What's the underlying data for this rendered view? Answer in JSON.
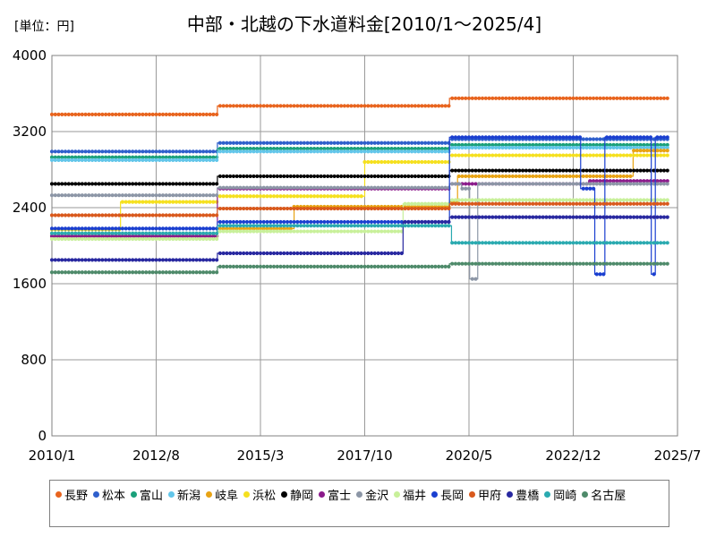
{
  "chart_data": {
    "type": "line",
    "title": "中部・北越の下水道料金[2010/1～2025/4]",
    "unit_label": "[単位：円]",
    "xlabel": "",
    "ylabel": "",
    "xlim": [
      2010.0,
      2025.5
    ],
    "ylim": [
      0,
      4000
    ],
    "y_ticks": [
      0,
      800,
      1600,
      2400,
      3200,
      4000
    ],
    "x_ticks": [
      {
        "t": 2010.0,
        "label": "2010/1"
      },
      {
        "t": 2012.5833,
        "label": "2012/8"
      },
      {
        "t": 2015.1667,
        "label": "2015/3"
      },
      {
        "t": 2017.75,
        "label": "2017/10"
      },
      {
        "t": 2020.3333,
        "label": "2020/5"
      },
      {
        "t": 2022.9167,
        "label": "2022/12"
      },
      {
        "t": 2025.5,
        "label": "2025/7"
      }
    ],
    "grid": true,
    "legend_position": "bottom",
    "series": [
      {
        "name": "長野",
        "color": "#E8641E",
        "steps": [
          [
            2010.0,
            3380
          ],
          [
            2014.1,
            3470
          ],
          [
            2019.85,
            3550
          ],
          [
            2025.25,
            3550
          ]
        ]
      },
      {
        "name": "松本",
        "color": "#2E5FCC",
        "steps": [
          [
            2010.0,
            2990
          ],
          [
            2014.1,
            3080
          ],
          [
            2019.85,
            3120
          ],
          [
            2025.25,
            3120
          ]
        ]
      },
      {
        "name": "富山",
        "color": "#1AA07A",
        "steps": [
          [
            2010.0,
            2930
          ],
          [
            2014.1,
            3020
          ],
          [
            2019.85,
            3060
          ],
          [
            2025.25,
            3060
          ]
        ]
      },
      {
        "name": "新潟",
        "color": "#62C6EA",
        "steps": [
          [
            2010.0,
            2900
          ],
          [
            2014.1,
            2990
          ],
          [
            2019.85,
            3030
          ],
          [
            2025.25,
            3030
          ]
        ]
      },
      {
        "name": "岐阜",
        "color": "#E8A314",
        "steps": [
          [
            2010.0,
            2100
          ],
          [
            2014.1,
            2180
          ],
          [
            2016.0,
            2410
          ],
          [
            2019.85,
            2460
          ],
          [
            2020.05,
            2730
          ],
          [
            2024.4,
            3000
          ],
          [
            2025.25,
            3000
          ]
        ]
      },
      {
        "name": "浜松",
        "color": "#F5E01E",
        "steps": [
          [
            2010.0,
            2170
          ],
          [
            2011.7,
            2460
          ],
          [
            2014.1,
            2520
          ],
          [
            2017.75,
            2880
          ],
          [
            2019.85,
            2950
          ],
          [
            2025.25,
            2950
          ]
        ]
      },
      {
        "name": "静岡",
        "color": "#000000",
        "steps": [
          [
            2010.0,
            2650
          ],
          [
            2014.1,
            2730
          ],
          [
            2019.85,
            2790
          ],
          [
            2025.25,
            2790
          ]
        ]
      },
      {
        "name": "富士",
        "color": "#8B1A8B",
        "steps": [
          [
            2010.0,
            2100
          ],
          [
            2014.1,
            2600
          ],
          [
            2019.85,
            2650
          ],
          [
            2023.3,
            2680
          ],
          [
            2025.25,
            2680
          ]
        ]
      },
      {
        "name": "金沢",
        "color": "#8C96A6",
        "steps": [
          [
            2010.0,
            2530
          ],
          [
            2014.1,
            2610
          ],
          [
            2019.85,
            2650
          ],
          [
            2020.15,
            2600
          ],
          [
            2020.35,
            1650
          ],
          [
            2020.55,
            2650
          ],
          [
            2025.25,
            2650
          ]
        ]
      },
      {
        "name": "福井",
        "color": "#C8F09A",
        "steps": [
          [
            2010.0,
            2070
          ],
          [
            2014.1,
            2150
          ],
          [
            2018.7,
            2440
          ],
          [
            2019.85,
            2480
          ],
          [
            2025.25,
            2480
          ]
        ]
      },
      {
        "name": "長岡",
        "color": "#1A3FD0",
        "steps": [
          [
            2010.0,
            2180
          ],
          [
            2014.1,
            2250
          ],
          [
            2019.85,
            3140
          ],
          [
            2023.1,
            2600
          ],
          [
            2023.45,
            1700
          ],
          [
            2023.7,
            3140
          ],
          [
            2024.85,
            1700
          ],
          [
            2024.95,
            3140
          ],
          [
            2025.25,
            3140
          ]
        ]
      },
      {
        "name": "甲府",
        "color": "#D9591C",
        "steps": [
          [
            2010.0,
            2320
          ],
          [
            2014.1,
            2390
          ],
          [
            2019.85,
            2440
          ],
          [
            2025.25,
            2440
          ]
        ]
      },
      {
        "name": "豊橋",
        "color": "#2828A0",
        "steps": [
          [
            2010.0,
            1850
          ],
          [
            2014.1,
            1920
          ],
          [
            2018.7,
            2250
          ],
          [
            2019.85,
            2300
          ],
          [
            2025.25,
            2300
          ]
        ]
      },
      {
        "name": "岡崎",
        "color": "#2AAAB0",
        "steps": [
          [
            2010.0,
            2130
          ],
          [
            2014.1,
            2210
          ],
          [
            2019.9,
            2030
          ],
          [
            2025.25,
            2030
          ]
        ]
      },
      {
        "name": "名古屋",
        "color": "#4E8A6A",
        "steps": [
          [
            2010.0,
            1720
          ],
          [
            2014.1,
            1780
          ],
          [
            2019.85,
            1810
          ],
          [
            2025.25,
            1810
          ]
        ]
      }
    ]
  }
}
